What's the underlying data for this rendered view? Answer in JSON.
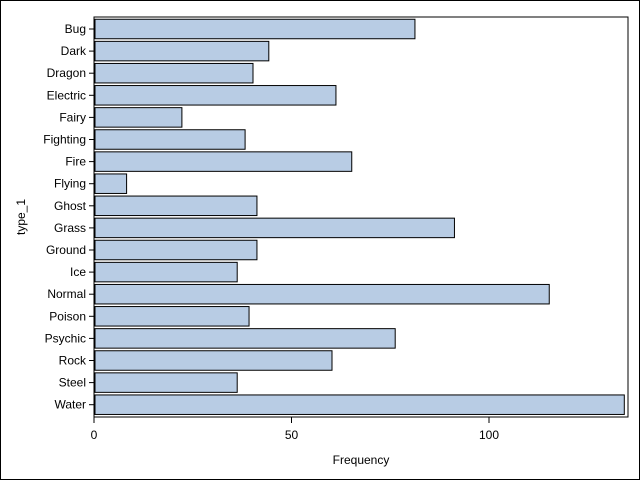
{
  "chart_data": {
    "type": "bar",
    "orientation": "horizontal",
    "categories": [
      "Bug",
      "Dark",
      "Dragon",
      "Electric",
      "Fairy",
      "Fighting",
      "Fire",
      "Flying",
      "Ghost",
      "Grass",
      "Ground",
      "Ice",
      "Normal",
      "Poison",
      "Psychic",
      "Rock",
      "Steel",
      "Water"
    ],
    "values": [
      81,
      44,
      40,
      61,
      22,
      38,
      65,
      8,
      41,
      91,
      41,
      36,
      115,
      39,
      76,
      60,
      36,
      134
    ],
    "xlabel": "Frequency",
    "ylabel": "type_1",
    "xlim": [
      0,
      135
    ],
    "xticks": [
      0,
      50,
      100
    ],
    "bar_color": "#b8cce4",
    "bar_edge_color": "#000000",
    "grid": false
  }
}
